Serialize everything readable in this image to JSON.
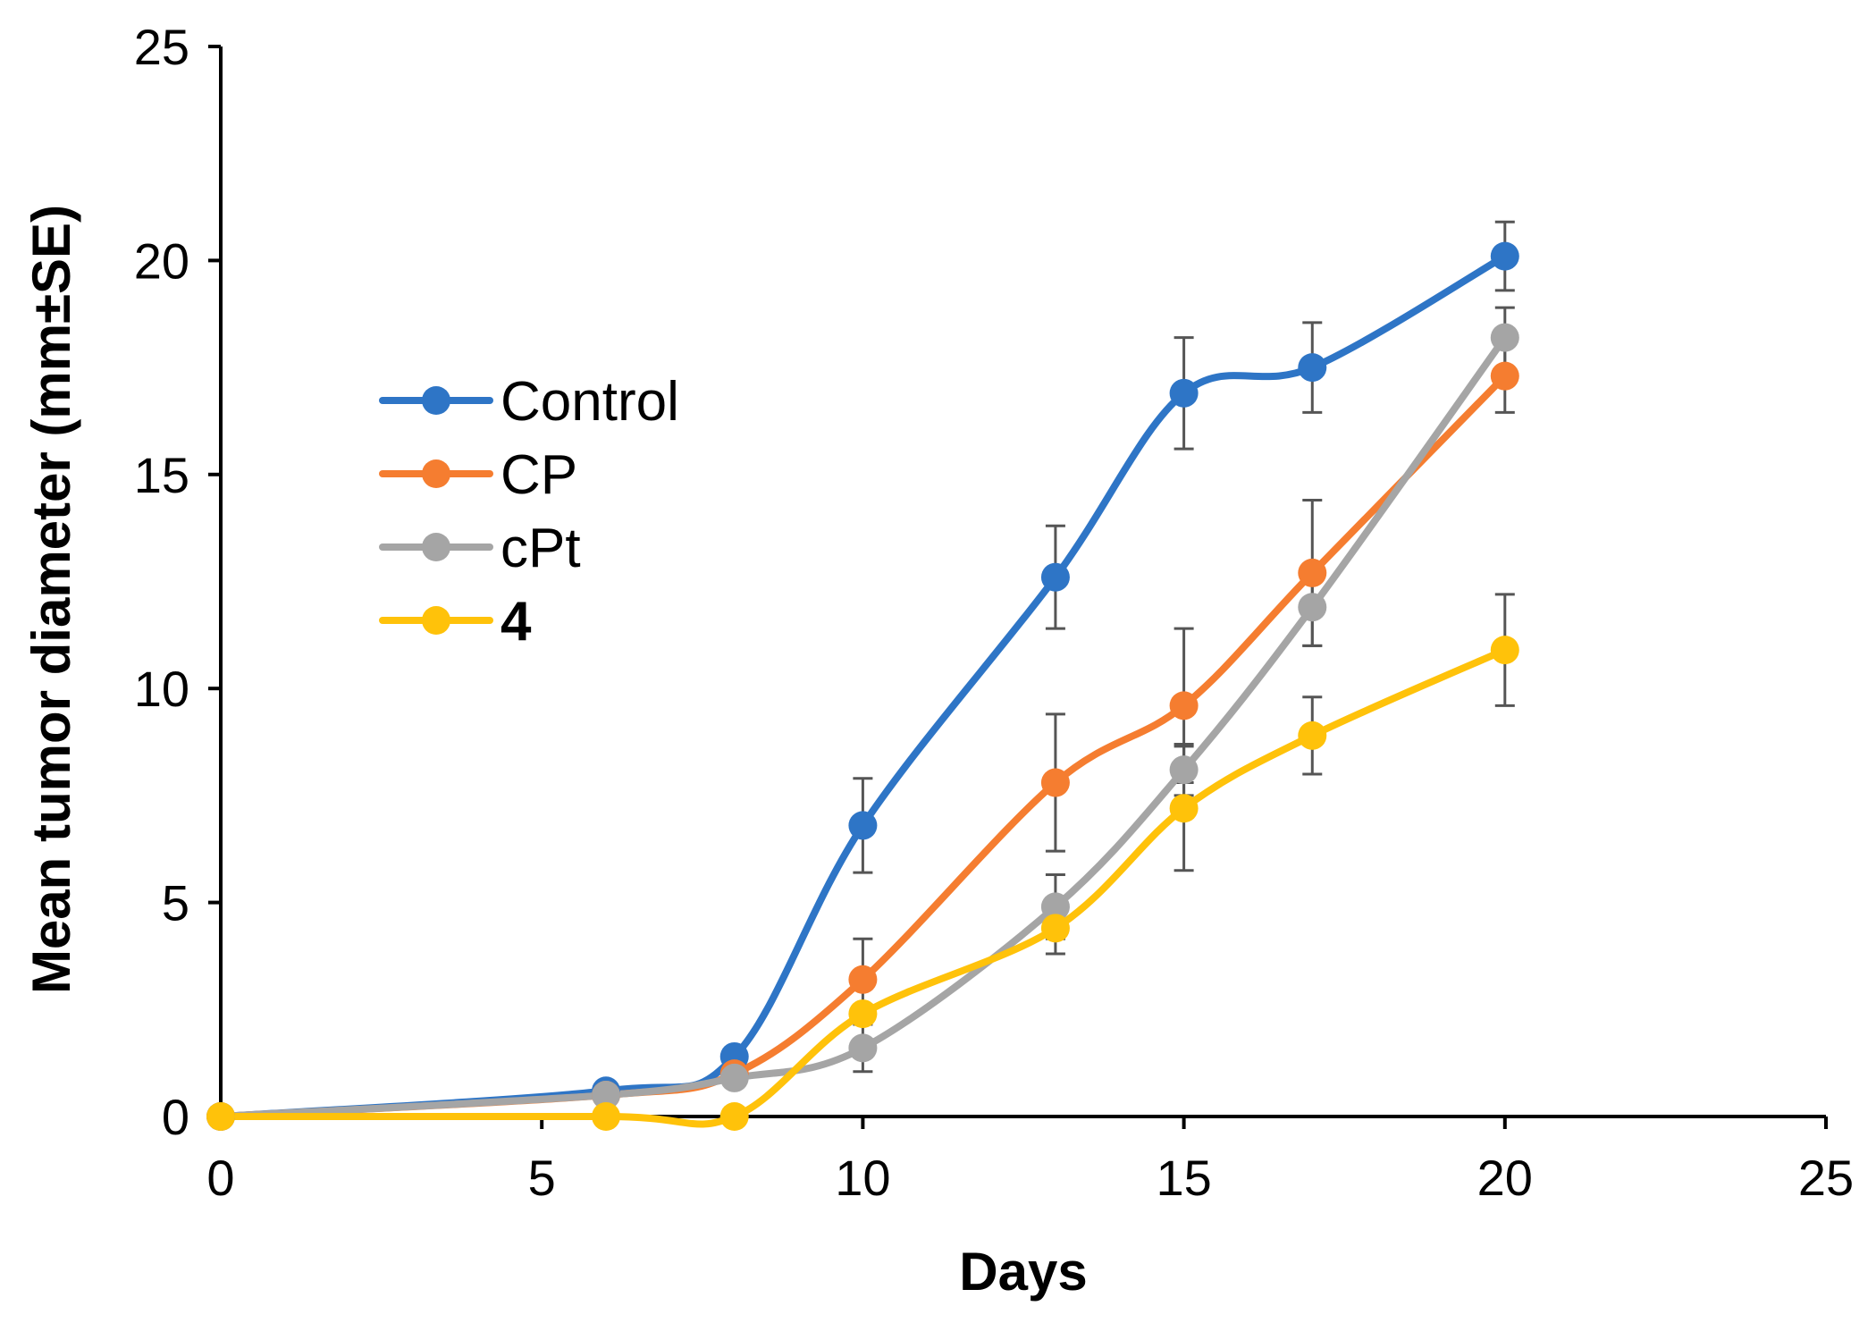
{
  "chart_data": {
    "type": "line",
    "title": "",
    "xlabel": "Days",
    "ylabel": "Mean tumor diameter (mm±SE)",
    "xlim": [
      0,
      25
    ],
    "ylim": [
      0,
      25
    ],
    "xticks": [
      0,
      5,
      10,
      15,
      20,
      25
    ],
    "yticks": [
      0,
      5,
      10,
      15,
      20,
      25
    ],
    "xtick_labels": [
      "0",
      "5",
      "10",
      "15",
      "20",
      "25"
    ],
    "ytick_labels": [
      "0",
      "5",
      "10",
      "15",
      "20",
      "25"
    ],
    "grid": false,
    "legend_position": "upper-left",
    "x": [
      0,
      6,
      8,
      10,
      13,
      15,
      17,
      20
    ],
    "series": [
      {
        "name": "Control",
        "color": "#2E75C6",
        "values": [
          0,
          0.6,
          1.4,
          6.8,
          12.6,
          16.9,
          17.5,
          20.1
        ],
        "errors": [
          0,
          0,
          0,
          1.1,
          1.2,
          1.3,
          1.05,
          0.8
        ]
      },
      {
        "name": "CP",
        "color": "#F57D30",
        "values": [
          0,
          0.5,
          1.0,
          3.2,
          7.8,
          9.6,
          12.7,
          17.3
        ],
        "errors": [
          0,
          0,
          0,
          0.95,
          1.6,
          1.8,
          1.7,
          0.85
        ]
      },
      {
        "name": "cPt",
        "color": "#A5A5A5",
        "values": [
          0,
          0.5,
          0.9,
          1.6,
          4.9,
          8.1,
          11.9,
          18.2
        ],
        "errors": [
          0,
          0,
          0,
          0.55,
          0.75,
          0.6,
          0.9,
          0.7
        ]
      },
      {
        "name": "4",
        "color": "#FFC20A",
        "bold": true,
        "values": [
          0,
          0,
          0,
          2.4,
          4.4,
          7.2,
          8.9,
          10.9
        ],
        "errors": [
          0,
          0,
          0,
          0,
          0.6,
          1.45,
          0.9,
          1.3
        ]
      }
    ]
  }
}
